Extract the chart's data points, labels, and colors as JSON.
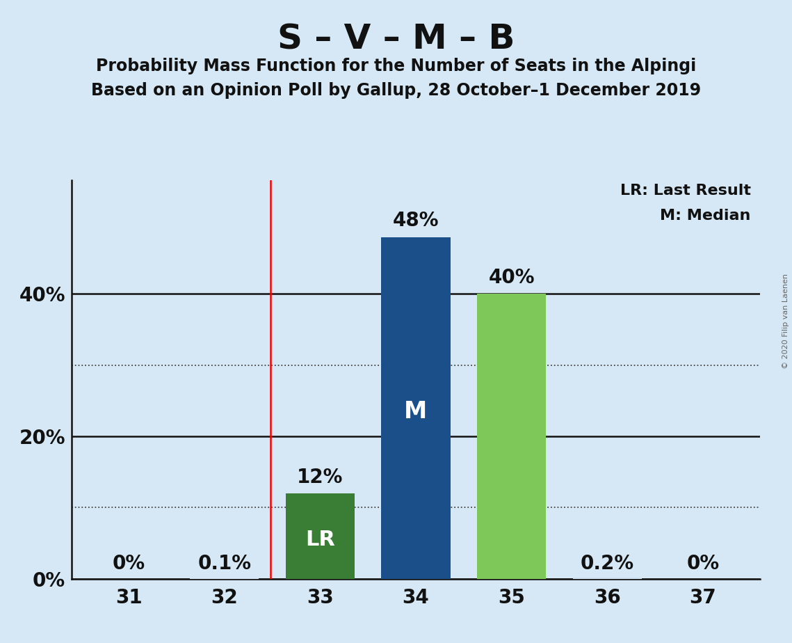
{
  "title": "S – V – M – B",
  "subtitle1": "Probability Mass Function for the Number of Seats in the Alpingi",
  "subtitle2": "Based on an Opinion Poll by Gallup, 28 October–1 December 2019",
  "copyright": "© 2020 Filip van Laenen",
  "seats": [
    31,
    32,
    33,
    34,
    35,
    36,
    37
  ],
  "probabilities": [
    0.0,
    0.001,
    0.12,
    0.48,
    0.4,
    0.002,
    0.0
  ],
  "bar_labels": [
    "0%",
    "0.1%",
    "12%",
    "48%",
    "40%",
    "0.2%",
    "0%"
  ],
  "bar_colors": [
    "#cce0f0",
    "#cce0f0",
    "#3a7d34",
    "#1b4f8a",
    "#7ec85a",
    "#cce0f0",
    "#cce0f0"
  ],
  "last_result_seat": 33,
  "median_seat": 34,
  "lr_label": "LR",
  "median_label": "M",
  "legend_lr": "LR: Last Result",
  "legend_m": "M: Median",
  "background_color": "#d6e8f5",
  "title_fontsize": 36,
  "subtitle_fontsize": 17,
  "bar_label_fontsize": 20,
  "axis_tick_fontsize": 20,
  "legend_fontsize": 16,
  "ylim": [
    0,
    0.56
  ],
  "xlim": [
    30.4,
    37.6
  ],
  "vline_x": 32.48,
  "solid_hlines": [
    0.0,
    0.2,
    0.4
  ],
  "dotted_hlines": [
    0.1,
    0.3
  ],
  "ytick_positions": [
    0.0,
    0.2,
    0.4
  ],
  "ytick_labels": [
    "0%",
    "20%",
    "40%"
  ],
  "bar_width": 0.72
}
